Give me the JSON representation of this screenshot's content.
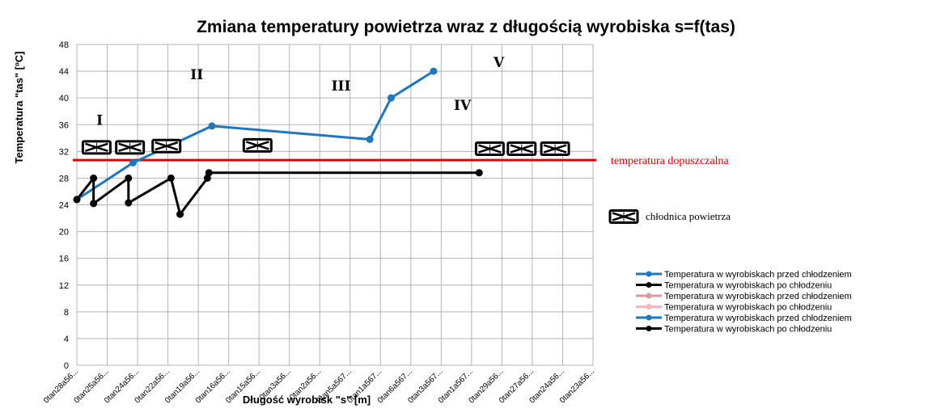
{
  "chart_data": {
    "type": "line",
    "title": "Zmiana temperatury powietrza wraz z długością wyrobiska s=f(tas)",
    "xlabel": "Długość wyrobisk \"s\" [m]",
    "ylabel": "Temperatura \"tas\" [ºC]",
    "ylim": [
      0,
      48
    ],
    "yticks": [
      0,
      4,
      8,
      12,
      16,
      20,
      24,
      28,
      32,
      36,
      40,
      44,
      48
    ],
    "categories": [
      "0tan28a56...",
      "0tan25a56...",
      "0tan24a56...",
      "0tan22a56...",
      "0tan19a56...",
      "0tan16a56...",
      "0tan15a56...",
      "0tan3a56...",
      "0tan2a56...",
      "0tan5a567...",
      "0tan1a567...",
      "0tan6a567...",
      "0tan3a567...",
      "0tan1a567...",
      "0tan29a56...",
      "0tan27a56...",
      "0tan24a56...",
      "0tan23a56..."
    ],
    "grid": true,
    "series": [
      {
        "name": "Temperatura w wyrobiskach przed chłodzeniem",
        "color": "#1f77c0",
        "points": [
          [
            0,
            24.8
          ],
          [
            1.85,
            30.3
          ],
          [
            4.45,
            35.8
          ],
          [
            9.65,
            33.8
          ],
          [
            10.35,
            40.0
          ],
          [
            11.75,
            44.0
          ]
        ]
      },
      {
        "name": "Temperatura w wyrobiskach po chłodzeniu",
        "color": "#000000",
        "points": [
          [
            0,
            24.8
          ],
          [
            0.55,
            28.0
          ],
          [
            0.55,
            24.2
          ],
          [
            1.7,
            28.0
          ],
          [
            1.7,
            24.3
          ],
          [
            3.1,
            28.0
          ],
          [
            3.4,
            22.6
          ],
          [
            4.3,
            28.0
          ],
          [
            4.35,
            28.8
          ],
          [
            13.25,
            28.8
          ]
        ]
      },
      {
        "name": "Temperatura w wyrobiskach przed chłodzeniem",
        "color": "#d99ba0",
        "points": []
      },
      {
        "name": "Temperatura w wyrobiskach po chłodzeniu",
        "color": "#f0b8bc",
        "points": []
      },
      {
        "name": "Temperatura w wyrobiskach przed chłodzeniem",
        "color": "#1f77c0",
        "points": []
      },
      {
        "name": "Temperatura w wyrobiskach po chłodzeniu",
        "color": "#000000",
        "points": []
      }
    ],
    "reference_line": {
      "label": "temperatura dopuszczalna",
      "value": 30.7,
      "color": "#e00000"
    },
    "coolers": {
      "label": "chłodnica powietrza",
      "positions": [
        [
          0.65,
          32.6
        ],
        [
          1.75,
          32.6
        ],
        [
          2.95,
          32.8
        ],
        [
          5.95,
          32.9
        ],
        [
          13.6,
          32.4
        ],
        [
          14.65,
          32.4
        ],
        [
          15.75,
          32.4
        ]
      ]
    },
    "sections": [
      {
        "label": "I",
        "x": 0.75,
        "y": 36.0
      },
      {
        "label": "II",
        "x": 3.95,
        "y": 42.8
      },
      {
        "label": "III",
        "x": 8.7,
        "y": 41.1
      },
      {
        "label": "IV",
        "x": 12.7,
        "y": 38.2
      },
      {
        "label": "V",
        "x": 13.9,
        "y": 44.6
      }
    ]
  }
}
